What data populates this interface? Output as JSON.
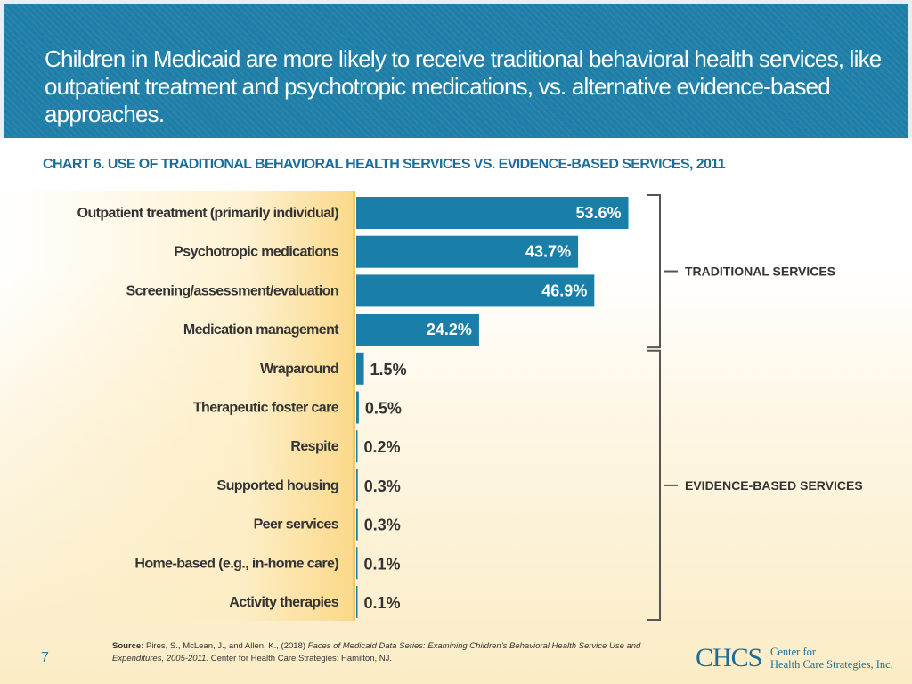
{
  "header": {
    "title": "Children in Medicaid are more likely to receive traditional behavioral health services, like outpatient treatment and psychotropic medications, vs. alternative evidence-based approaches."
  },
  "colors": {
    "bar": "#1a7fa8",
    "header": "#1f7fa8",
    "title_accent": "#1a6e99"
  },
  "chart_data": {
    "type": "bar",
    "orientation": "horizontal",
    "title": "CHART 6. USE OF TRADITIONAL BEHAVIORAL HEALTH SERVICES VS. EVIDENCE-BASED SERVICES, 2011",
    "categories": [
      "Outpatient treatment (primarily individual)",
      "Psychotropic medications",
      "Screening/assessment/evaluation",
      "Medication management",
      "Wraparound",
      "Therapeutic foster care",
      "Respite",
      "Supported housing",
      "Peer services",
      "Home-based (e.g., in-home care)",
      "Activity therapies"
    ],
    "values": [
      53.6,
      43.7,
      46.9,
      24.2,
      1.5,
      0.5,
      0.2,
      0.3,
      0.3,
      0.1,
      0.1
    ],
    "value_labels": [
      "53.6%",
      "43.7%",
      "46.9%",
      "24.2%",
      "1.5%",
      "0.5%",
      "0.2%",
      "0.3%",
      "0.3%",
      "0.1%",
      "0.1%"
    ],
    "unit": "%",
    "xlim": [
      0,
      60
    ],
    "groups": [
      {
        "name": "TRADITIONAL SERVICES",
        "start": 0,
        "end": 3
      },
      {
        "name": "EVIDENCE-BASED SERVICES",
        "start": 4,
        "end": 10
      }
    ]
  },
  "footer": {
    "source_label": "Source:",
    "source_authors": " Pires, S., McLean, J., and Allen, K., (2018) ",
    "source_title": "Faces of Medicaid Data Series: Examining Children’s Behavioral Health Service Use and Expenditures, 2005-2011",
    "source_publisher": ". Center for Health Care Strategies: Hamilton, NJ.",
    "page_number": "7",
    "logo_mark": "CHCS",
    "logo_line1": "Center for",
    "logo_line2": "Health Care Strategies, Inc."
  }
}
